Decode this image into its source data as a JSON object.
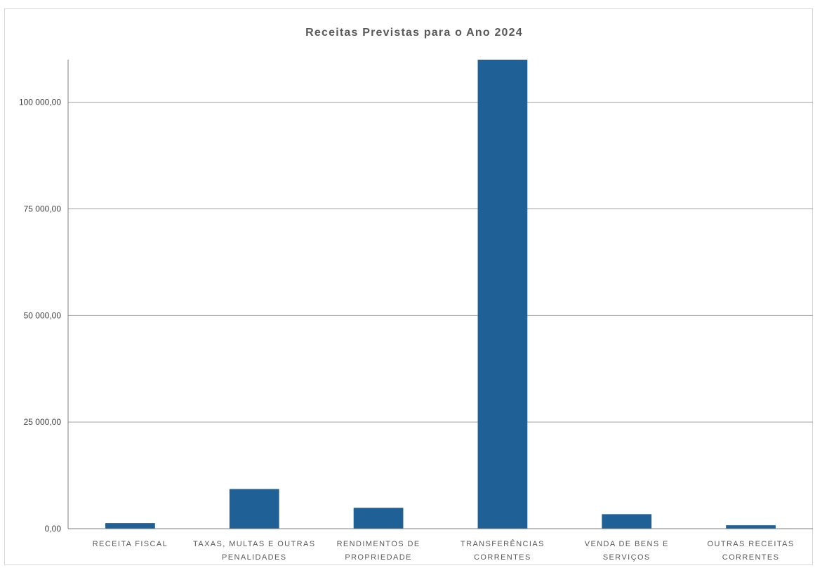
{
  "chart_data": {
    "type": "bar",
    "title": "Receitas Previstas para o Ano 2024",
    "xlabel": "",
    "ylabel": "",
    "categories": [
      [
        "RECEITA FISCAL"
      ],
      [
        "TAXAS, MULTAS E OUTRAS",
        "PENALIDADES"
      ],
      [
        "RENDIMENTOS DE",
        "PROPRIEDADE"
      ],
      [
        "TRANSFERÊNCIAS",
        "CORRENTES"
      ],
      [
        "VENDA DE BENS E",
        "SERVIÇOS"
      ],
      [
        "OUTRAS RECEITAS",
        "CORRENTES"
      ]
    ],
    "values": [
      1300,
      9300,
      4900,
      110000,
      3400,
      800
    ],
    "ylim": [
      0,
      110000
    ],
    "yticks": [
      {
        "value": 0,
        "label": "0,00"
      },
      {
        "value": 25000,
        "label": "25 000,00"
      },
      {
        "value": 50000,
        "label": "50 000,00"
      },
      {
        "value": 75000,
        "label": "75 000,00"
      },
      {
        "value": 100000,
        "label": "100 000,00"
      }
    ],
    "grid": true,
    "legend": "none",
    "colors": {
      "bar": "#1f6196",
      "grid": "#9f9f9f",
      "axis": "#7f7f7f"
    }
  }
}
